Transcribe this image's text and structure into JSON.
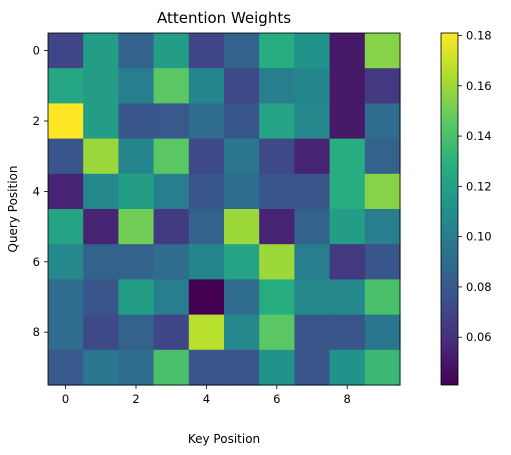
{
  "chart_data": {
    "type": "heatmap",
    "title": "Attention Weights",
    "xlabel": "Key Position",
    "ylabel": "Query Position",
    "x_ticks": [
      0,
      2,
      4,
      6,
      8
    ],
    "y_ticks": [
      0,
      2,
      4,
      6,
      8
    ],
    "colorbar": {
      "colormap": "viridis",
      "range": [
        0.041,
        0.181
      ],
      "ticks": [
        0.06,
        0.08,
        0.1,
        0.12,
        0.14,
        0.16,
        0.18
      ],
      "tick_labels": [
        "0.06",
        "0.08",
        "0.10",
        "0.12",
        "0.14",
        "0.16",
        "0.18"
      ]
    },
    "matrix": [
      [
        0.07,
        0.118,
        0.085,
        0.118,
        0.07,
        0.085,
        0.128,
        0.112,
        0.05,
        0.155
      ],
      [
        0.124,
        0.118,
        0.1,
        0.145,
        0.104,
        0.072,
        0.1,
        0.104,
        0.05,
        0.064
      ],
      [
        0.181,
        0.118,
        0.078,
        0.08,
        0.09,
        0.078,
        0.122,
        0.106,
        0.05,
        0.09
      ],
      [
        0.078,
        0.159,
        0.104,
        0.145,
        0.072,
        0.096,
        0.072,
        0.055,
        0.128,
        0.085
      ],
      [
        0.055,
        0.106,
        0.118,
        0.1,
        0.078,
        0.09,
        0.078,
        0.078,
        0.128,
        0.155
      ],
      [
        0.122,
        0.055,
        0.15,
        0.065,
        0.085,
        0.16,
        0.055,
        0.085,
        0.118,
        0.1
      ],
      [
        0.106,
        0.085,
        0.085,
        0.09,
        0.104,
        0.122,
        0.16,
        0.1,
        0.064,
        0.078
      ],
      [
        0.09,
        0.078,
        0.118,
        0.1,
        0.041,
        0.09,
        0.128,
        0.106,
        0.106,
        0.14
      ],
      [
        0.09,
        0.072,
        0.085,
        0.07,
        0.166,
        0.106,
        0.145,
        0.078,
        0.078,
        0.096
      ],
      [
        0.08,
        0.096,
        0.09,
        0.14,
        0.078,
        0.078,
        0.112,
        0.078,
        0.112,
        0.135
      ]
    ]
  }
}
